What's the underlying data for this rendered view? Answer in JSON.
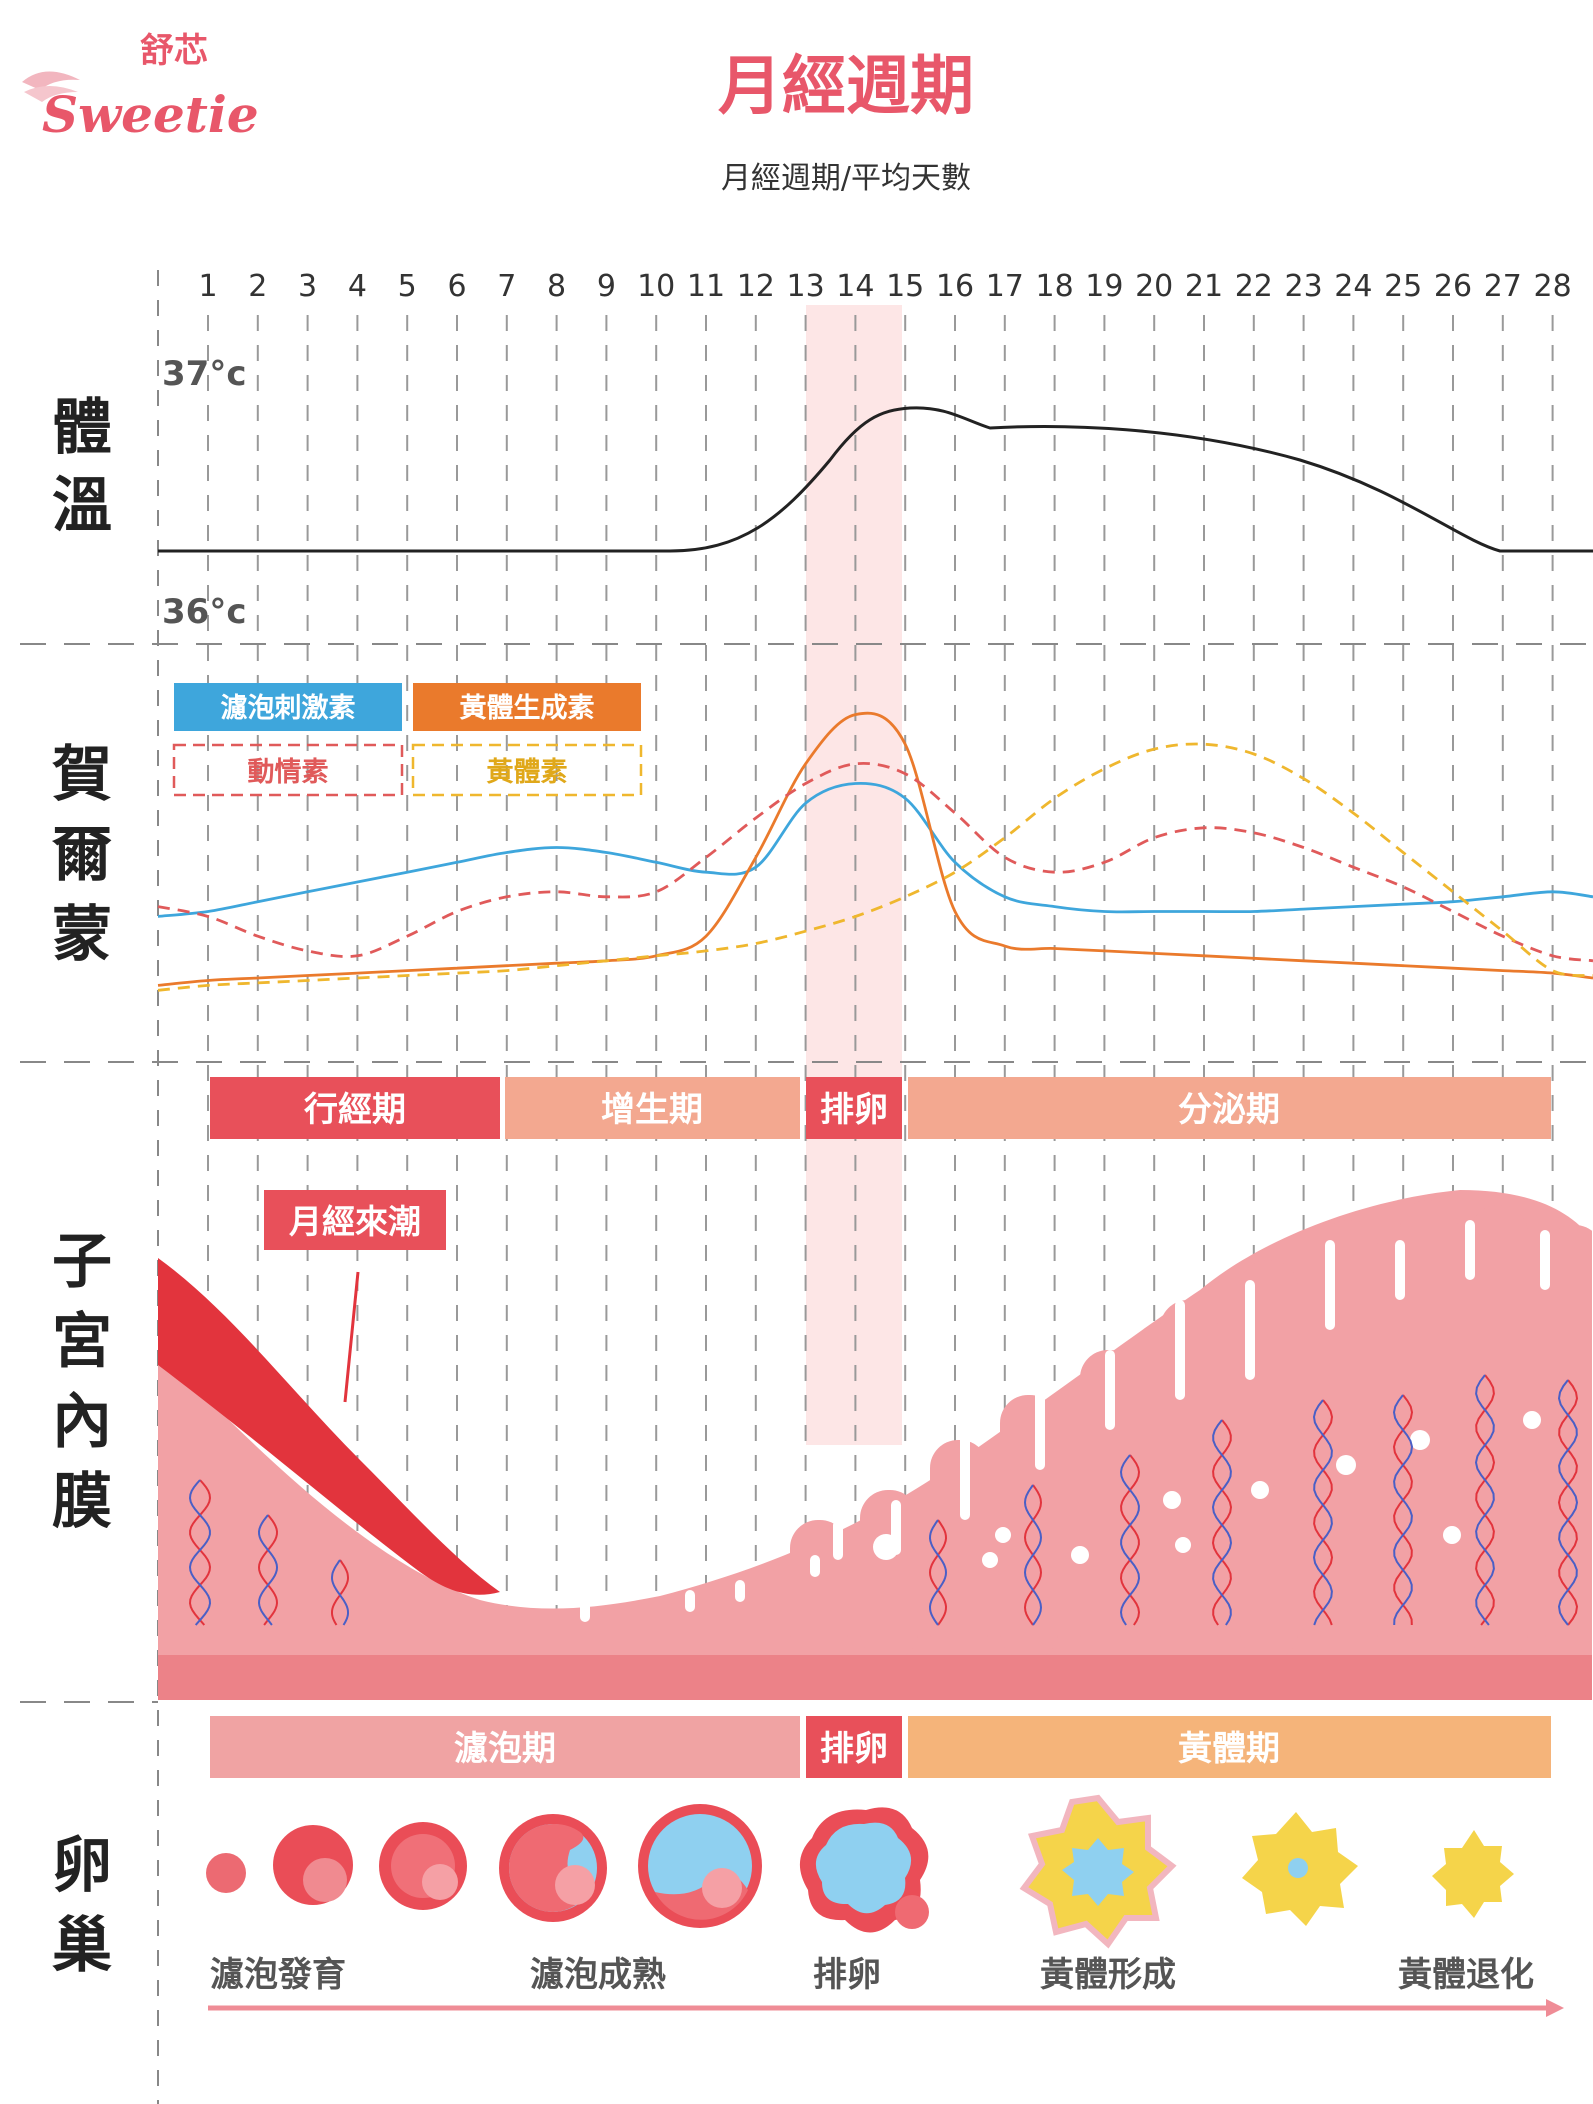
{
  "brand": {
    "cn": "舒芯",
    "en": "Sweetie"
  },
  "title": "月經週期",
  "subtitle": "月經週期/平均天數",
  "days": [
    "1",
    "2",
    "3",
    "4",
    "5",
    "6",
    "7",
    "8",
    "9",
    "10",
    "11",
    "12",
    "13",
    "14",
    "15",
    "16",
    "17",
    "18",
    "19",
    "20",
    "21",
    "22",
    "23",
    "24",
    "25",
    "26",
    "27",
    "28"
  ],
  "sections": {
    "temperature": "體溫",
    "hormone": "賀爾蒙",
    "endometrium": "子宮內膜",
    "ovary": "卵巢"
  },
  "temperature": {
    "high_label": "37°c",
    "low_label": "36°c"
  },
  "legend": {
    "fsh": "濾泡刺激素",
    "lh": "黃體生成素",
    "estrogen": "動情素",
    "progesterone": "黃體素"
  },
  "uterine_phases": {
    "menstrual": "行經期",
    "proliferative": "增生期",
    "ovulation": "排卵",
    "secretory": "分泌期"
  },
  "menstruation_label": "月經來潮",
  "ovarian_phases": {
    "follicular": "濾泡期",
    "ovulation": "排卵",
    "luteal": "黃體期"
  },
  "ovary_stages": {
    "development": "濾泡發育",
    "maturation": "濾泡成熟",
    "ovulation": "排卵",
    "corpus_luteum_formation": "黃體形成",
    "corpus_luteum_regression": "黃體退化"
  },
  "colors": {
    "title": "#e8576a",
    "text": "#333333",
    "grid": "#8f8f8f",
    "fsh": "#3ea6dc",
    "lh": "#ea7a2c",
    "estrogen": "#e05a5a",
    "progesterone": "#efb72e",
    "ovulation_band": "#fde6e6",
    "menstrual": "#e8505a",
    "proliferative": "#f3a890",
    "secretory": "#f3a890",
    "follicular": "#f0a3a3",
    "luteal": "#f5b47a",
    "endometrium": "#f2a1a5",
    "endometrium_base": "#ec8288",
    "blood": "#e2343d"
  },
  "chart_data": {
    "type": "line",
    "x": [
      1,
      2,
      3,
      4,
      5,
      6,
      7,
      8,
      9,
      10,
      11,
      12,
      13,
      14,
      15,
      16,
      17,
      18,
      19,
      20,
      21,
      22,
      23,
      24,
      25,
      26,
      27,
      28
    ],
    "series": [
      {
        "name": "濾泡刺激素",
        "values": [
          40,
          44,
          48,
          52,
          56,
          60,
          64,
          66,
          64,
          60,
          56,
          58,
          84,
          92,
          86,
          60,
          46,
          42,
          40,
          40,
          40,
          40,
          41,
          42,
          43,
          44,
          46,
          48
        ]
      },
      {
        "name": "黃體生成素",
        "values": [
          12,
          13,
          14,
          15,
          16,
          17,
          18,
          19,
          20,
          22,
          30,
          62,
          100,
          120,
          108,
          40,
          26,
          25,
          24,
          23,
          22,
          21,
          20,
          19,
          18,
          17,
          16,
          15
        ]
      },
      {
        "name": "動情素",
        "values": [
          38,
          30,
          24,
          22,
          30,
          40,
          46,
          48,
          46,
          48,
          62,
          78,
          92,
          100,
          96,
          80,
          62,
          56,
          60,
          70,
          74,
          72,
          66,
          58,
          50,
          40,
          30,
          22
        ]
      },
      {
        "name": "黃體素",
        "values": [
          10,
          11,
          12,
          13,
          14,
          15,
          16,
          18,
          20,
          22,
          24,
          27,
          32,
          38,
          46,
          56,
          70,
          86,
          98,
          106,
          108,
          104,
          94,
          80,
          64,
          48,
          32,
          16
        ]
      }
    ]
  }
}
